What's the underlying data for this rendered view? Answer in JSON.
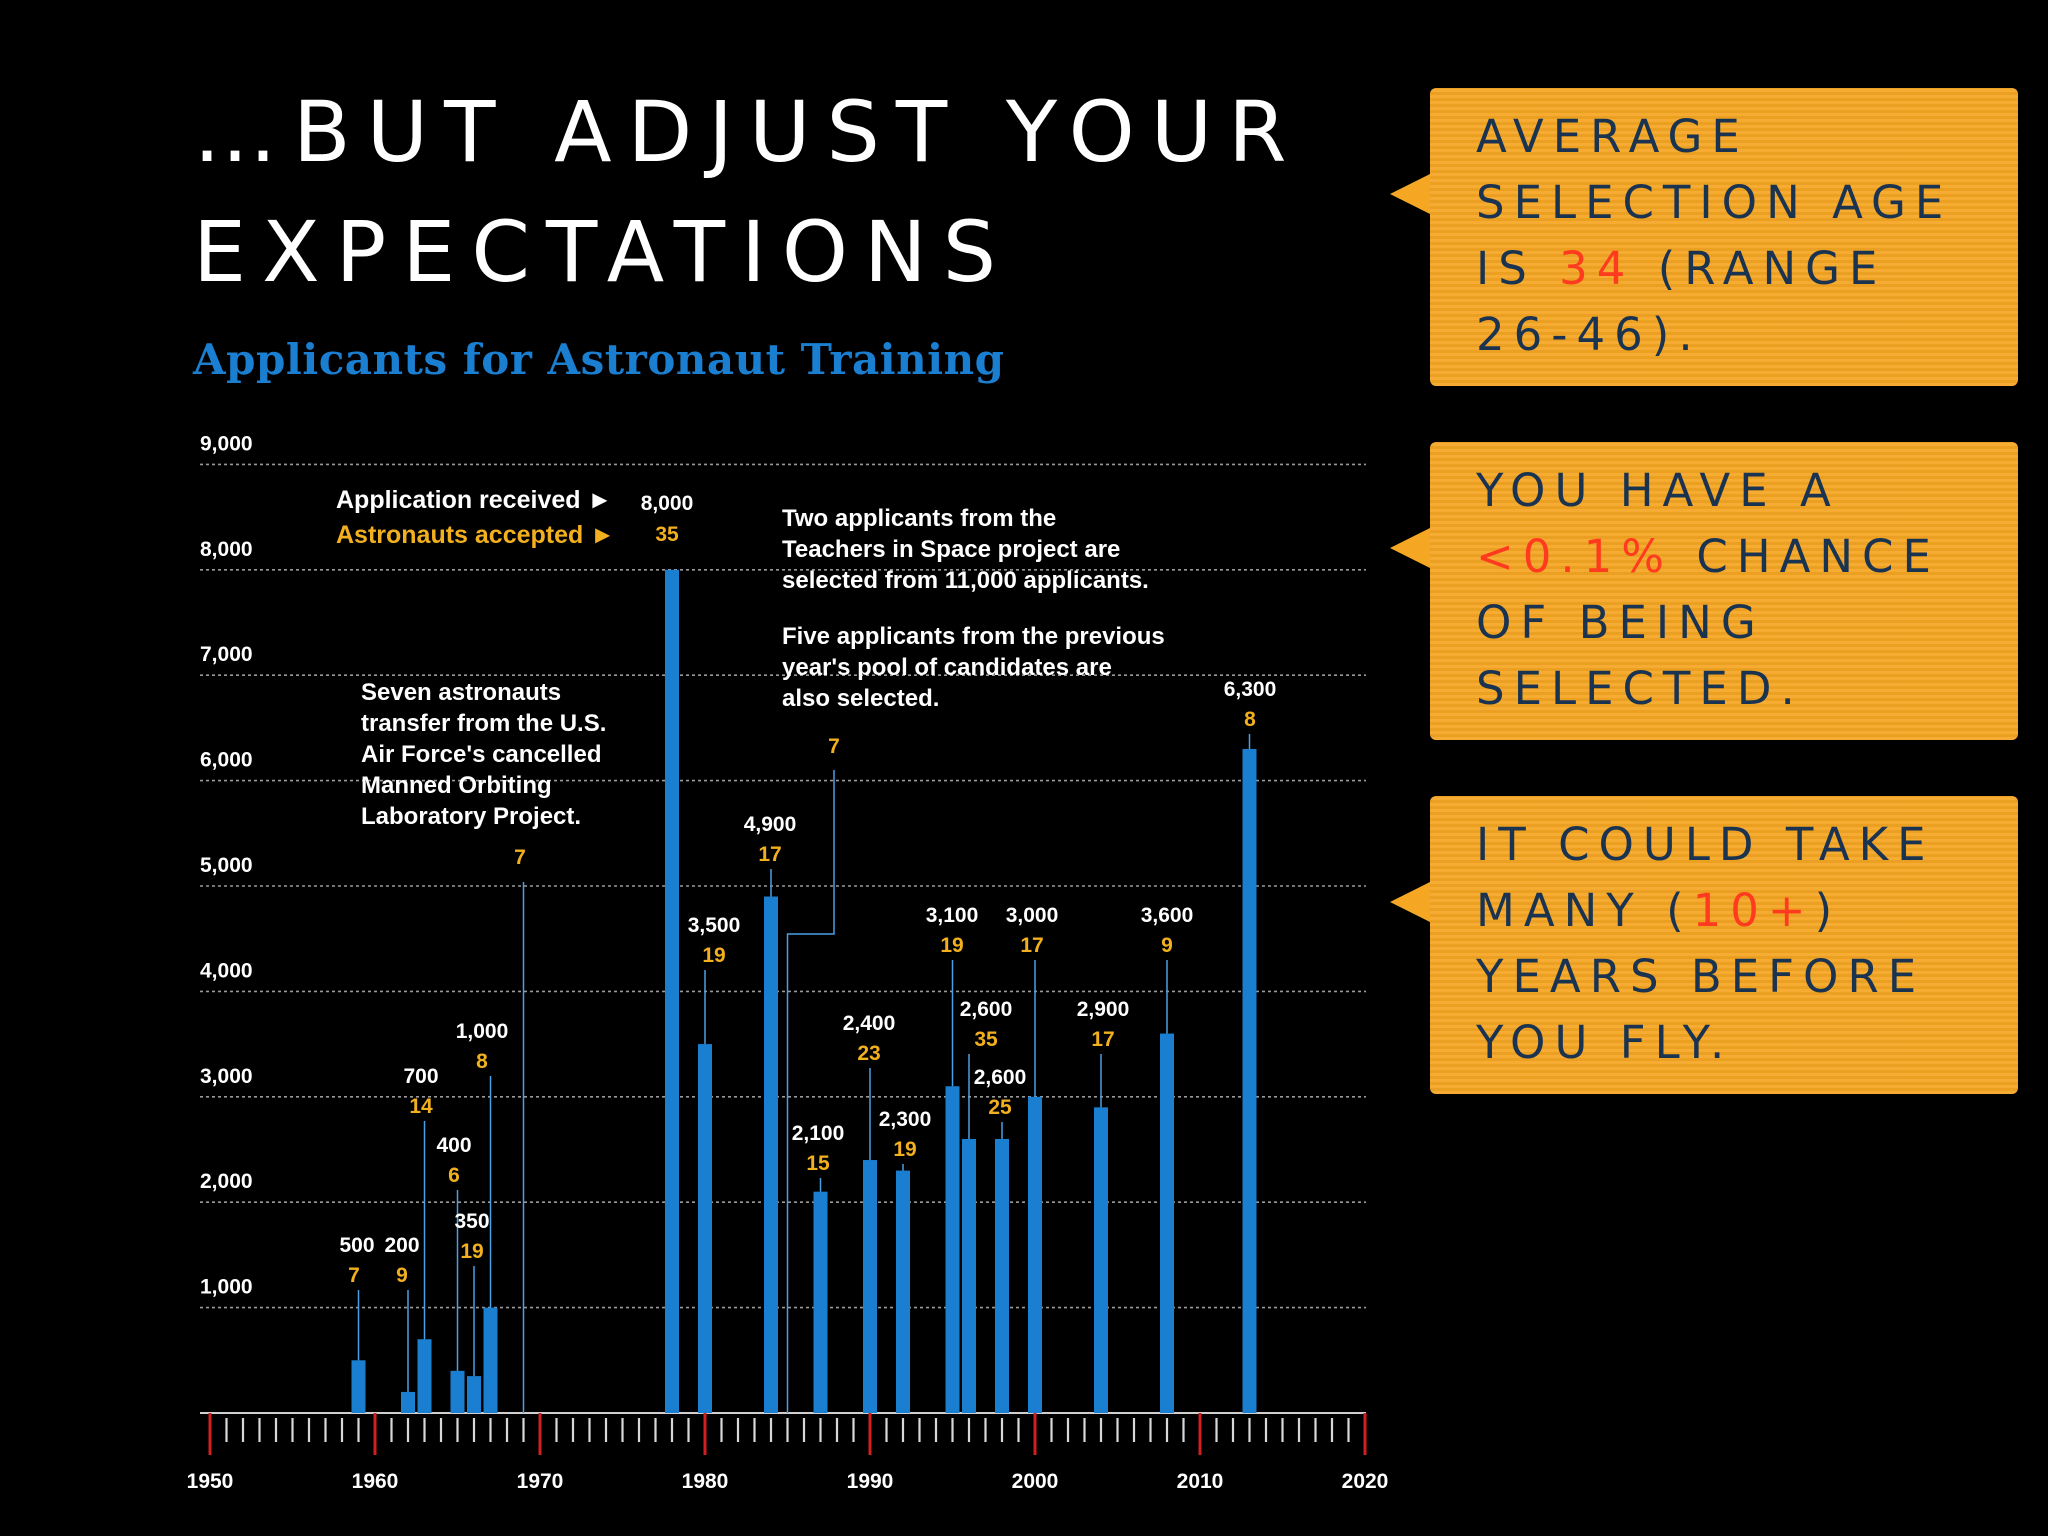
{
  "slide": {
    "title_line1": "…BUT ADJUST YOUR",
    "title_line2": "EXPECTATIONS"
  },
  "callouts": [
    {
      "pre": "AVERAGE SELECTION AGE IS ",
      "highlight": "34",
      "post": " (RANGE 26-46)."
    },
    {
      "pre": "YOU HAVE A ",
      "highlight": "<0.1%",
      "post": " CHANCE OF BEING SELECTED."
    },
    {
      "pre": "IT COULD TAKE MANY (",
      "highlight": "10+",
      "post": ") YEARS BEFORE YOU FLY."
    }
  ],
  "colors": {
    "bar": "#1b7fd1",
    "accepted": "#f2b01e",
    "callout_bg": "#f5a623",
    "callout_text": "#1a3350",
    "highlight": "#ff3b1f"
  },
  "chart_data": {
    "type": "bar",
    "title": "Applicants for Astronaut Training",
    "xlim": [
      1950,
      2020
    ],
    "ylim": [
      0,
      9000
    ],
    "x_ticks": [
      1950,
      1960,
      1970,
      1980,
      1990,
      2000,
      2010,
      2020
    ],
    "y_ticks": [
      1000,
      2000,
      3000,
      4000,
      5000,
      6000,
      7000,
      8000,
      9000
    ],
    "y_tick_labels": [
      "1,000",
      "2,000",
      "3,000",
      "4,000",
      "5,000",
      "6,000",
      "7,000",
      "8,000",
      "9,000"
    ],
    "legend": {
      "applications": "Application received ►",
      "accepted": "Astronauts accepted ►",
      "example_applications": "8,000",
      "example_accepted": "35"
    },
    "series": [
      {
        "name": "Application received",
        "role": "applications"
      },
      {
        "name": "Astronauts accepted",
        "role": "accepted"
      }
    ],
    "bars": [
      {
        "year": 1959,
        "applications": 500,
        "app_label": "500",
        "accepted": "7"
      },
      {
        "year": 1962,
        "applications": 200,
        "app_label": "200",
        "accepted": "9"
      },
      {
        "year": 1963,
        "applications": 700,
        "app_label": "700",
        "accepted": "14"
      },
      {
        "year": 1965,
        "applications": 400,
        "app_label": "400",
        "accepted": "6"
      },
      {
        "year": 1966,
        "applications": 350,
        "app_label": "350",
        "accepted": "19"
      },
      {
        "year": 1967,
        "applications": 1000,
        "app_label": "1,000",
        "accepted": "8"
      },
      {
        "year": 1969,
        "applications": 0,
        "app_label": "",
        "accepted": "7"
      },
      {
        "year": 1978,
        "applications": 8000,
        "app_label": "",
        "accepted": ""
      },
      {
        "year": 1980,
        "applications": 3500,
        "app_label": "3,500",
        "accepted": "19"
      },
      {
        "year": 1984,
        "applications": 4900,
        "app_label": "4,900",
        "accepted": "17"
      },
      {
        "year": 1985,
        "applications": 0,
        "app_label": "",
        "accepted": "7"
      },
      {
        "year": 1987,
        "applications": 2100,
        "app_label": "2,100",
        "accepted": "15"
      },
      {
        "year": 1990,
        "applications": 2400,
        "app_label": "2,400",
        "accepted": "23"
      },
      {
        "year": 1992,
        "applications": 2300,
        "app_label": "2,300",
        "accepted": "19"
      },
      {
        "year": 1995,
        "applications": 3100,
        "app_label": "3,100",
        "accepted": "19"
      },
      {
        "year": 1996,
        "applications": 2600,
        "app_label": "2,600",
        "accepted": "35"
      },
      {
        "year": 1998,
        "applications": 2600,
        "app_label": "2,600",
        "accepted": "25"
      },
      {
        "year": 2000,
        "applications": 3000,
        "app_label": "3,000",
        "accepted": "17"
      },
      {
        "year": 2004,
        "applications": 2900,
        "app_label": "2,900",
        "accepted": "17"
      },
      {
        "year": 2008,
        "applications": 3600,
        "app_label": "3,600",
        "accepted": "9"
      },
      {
        "year": 2013,
        "applications": 6300,
        "app_label": "6,300",
        "accepted": "8"
      }
    ],
    "annotations": [
      {
        "name": "mol-transfer",
        "lines": [
          "Seven astronauts",
          "transfer from the U.S.",
          "Air Force's cancelled",
          "Manned Orbiting",
          "Laboratory Project."
        ]
      },
      {
        "name": "teachers-in-space",
        "lines": [
          "Two applicants from the",
          "Teachers in Space project are",
          "selected from 11,000 applicants."
        ]
      },
      {
        "name": "previous-pool",
        "lines": [
          "Five applicants from the previous",
          "year's pool of candidates are",
          "also selected."
        ]
      }
    ]
  }
}
